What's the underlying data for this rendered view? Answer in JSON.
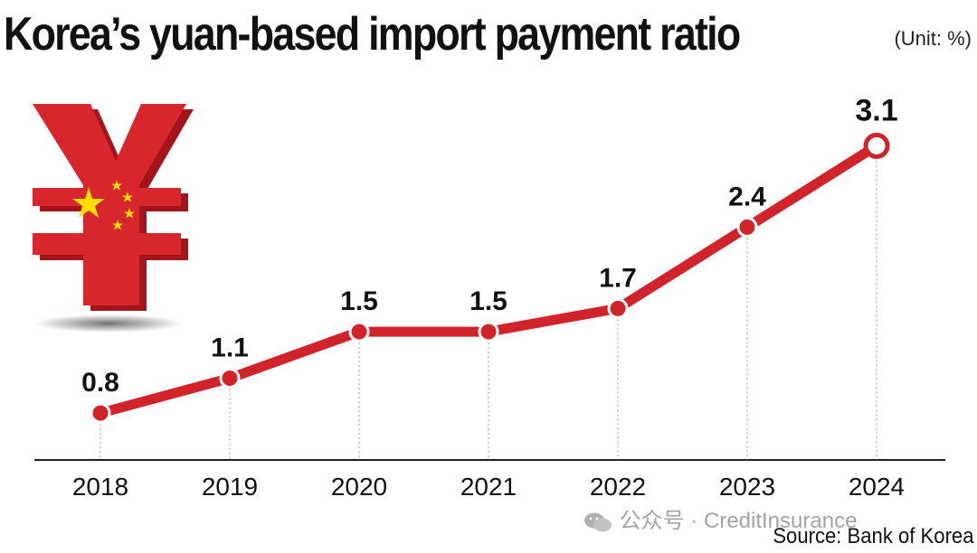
{
  "header": {
    "title": "Korea’s yuan-based import payment ratio",
    "unit": "(Unit: %)"
  },
  "footer": {
    "source": "Source: Bank of Korea",
    "watermark": "公众号 · CreditInsurance"
  },
  "colors": {
    "line": "#d0232a",
    "yuan": "#d8262d",
    "yuan_shadow": "#a3151b",
    "stars": "#ffde00",
    "axis": "#222222"
  },
  "chart_data": {
    "type": "line",
    "title": "Korea’s yuan-based import payment ratio",
    "ylabel": "(Unit: %)",
    "categories": [
      "2018",
      "2019",
      "2020",
      "2021",
      "2022",
      "2023",
      "2024"
    ],
    "values": [
      0.8,
      1.1,
      1.5,
      1.5,
      1.7,
      2.4,
      3.1
    ],
    "data_labels": [
      "0.8",
      "1.1",
      "1.5",
      "1.5",
      "1.7",
      "2.4",
      "3.1"
    ],
    "ylim": [
      0,
      3.5
    ],
    "grid": false,
    "legend": "none"
  }
}
